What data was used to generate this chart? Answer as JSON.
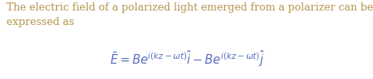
{
  "background_color": "#ffffff",
  "body_text_color": "#b5924c",
  "formula_color": "#5b6fbf",
  "body_text": "The electric field of a polarized light emerged from a polarizer can be\nexpressed as",
  "formula": "$\\bar{E} = Be^{i(kz-\\omega t)}\\hat{i} - Be^{i(kz-\\omega t)}\\hat{j}$",
  "body_fontsize": 9.2,
  "formula_fontsize": 10.5,
  "fig_width": 4.6,
  "fig_height": 0.98,
  "dpi": 100
}
